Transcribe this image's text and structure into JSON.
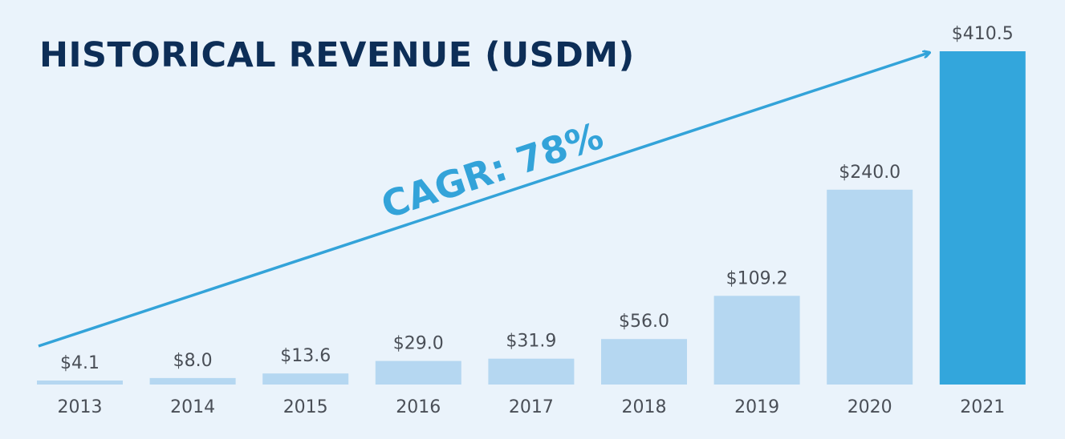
{
  "chart_data": {
    "type": "bar",
    "title": "HISTORICAL REVENUE (USDM)",
    "categories": [
      "2013",
      "2014",
      "2015",
      "2016",
      "2017",
      "2018",
      "2019",
      "2020",
      "2021"
    ],
    "values": [
      4.1,
      8.0,
      13.6,
      29.0,
      31.9,
      56.0,
      109.2,
      240.0,
      410.5
    ],
    "value_labels": [
      "$4.1",
      "$8.0",
      "$13.6",
      "$29.0",
      "$31.9",
      "$56.0",
      "$109.2",
      "$240.0",
      "$410.5"
    ],
    "annotation": "CAGR: 78%",
    "highlighted_category": "2021",
    "xlabel": "",
    "ylabel": "",
    "ylim": [
      0,
      410.5
    ],
    "grid": false
  },
  "colors": {
    "bar": "#b5d7f1",
    "bar_highlight": "#33a6dc",
    "arrow": "#33a3d9",
    "title": "#0d2e57",
    "label": "#4a4f57",
    "background": "#eaf3fb"
  }
}
